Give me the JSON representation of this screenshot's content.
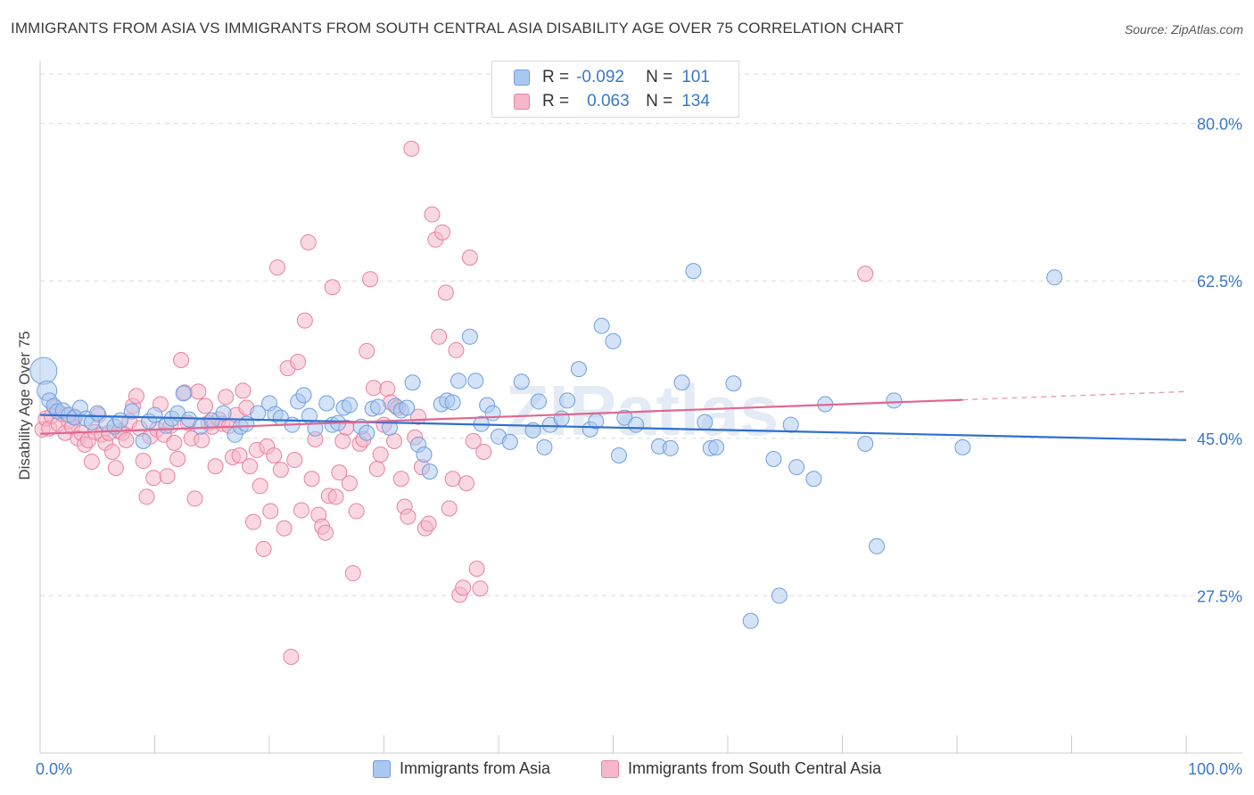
{
  "title": "IMMIGRANTS FROM ASIA VS IMMIGRANTS FROM SOUTH CENTRAL ASIA DISABILITY AGE OVER 75 CORRELATION CHART",
  "source": "Source: ZipAtlas.com",
  "watermark": "ZIPatlas",
  "colors": {
    "blue_fill": "#a9c8f0",
    "blue_stroke": "#6f9fe0",
    "blue_line": "#2e6fd0",
    "pink_fill": "#f5b8cb",
    "pink_stroke": "#e8829f",
    "pink_line": "#e0678f",
    "axis_text": "#3a78c9",
    "grid": "#dcdcdc"
  },
  "legend": {
    "rows": [
      {
        "r_label": "R =",
        "r_value": "-0.092",
        "n_label": "N =",
        "n_value": "101"
      },
      {
        "r_label": "R =",
        "r_value": "0.063",
        "n_label": "N =",
        "n_value": "134"
      }
    ]
  },
  "bottom_legend": [
    {
      "label": "Immigrants from Asia"
    },
    {
      "label": "Immigrants from South Central Asia"
    }
  ],
  "chart_data": {
    "type": "scatter",
    "title": "IMMIGRANTS FROM ASIA VS IMMIGRANTS FROM SOUTH CENTRAL ASIA DISABILITY AGE OVER 75 CORRELATION CHART",
    "xlabel": "",
    "ylabel": "Disability Age Over 75",
    "xlim": [
      0,
      100
    ],
    "ylim": [
      10,
      87
    ],
    "x_tick_labels": {
      "left": "0.0%",
      "right": "100.0%"
    },
    "y_ticks": [
      {
        "value": 80.0,
        "label": "80.0%"
      },
      {
        "value": 62.5,
        "label": "62.5%"
      },
      {
        "value": 45.0,
        "label": "45.0%"
      },
      {
        "value": 27.5,
        "label": "27.5%"
      }
    ],
    "series": [
      {
        "name": "Immigrants from Asia",
        "trend": {
          "x0": 0,
          "y0": 47.6,
          "x1": 100,
          "y1": 44.8,
          "solid_to": 100
        },
        "points": [
          [
            0.3,
            52.5
          ],
          [
            0.6,
            50.3
          ],
          [
            0.8,
            49.2
          ],
          [
            1.2,
            48.6
          ],
          [
            1.5,
            48.0
          ],
          [
            2.0,
            48.1
          ],
          [
            2.5,
            47.6
          ],
          [
            3.0,
            47.3
          ],
          [
            3.5,
            48.4
          ],
          [
            4.0,
            47.2
          ],
          [
            4.5,
            46.8
          ],
          [
            5.0,
            47.8
          ],
          [
            5.8,
            46.6
          ],
          [
            6.5,
            46.3
          ],
          [
            7.0,
            47.0
          ],
          [
            8.0,
            48.0
          ],
          [
            9.0,
            44.7
          ],
          [
            9.5,
            46.9
          ],
          [
            10.0,
            47.6
          ],
          [
            11.0,
            46.4
          ],
          [
            11.5,
            47.2
          ],
          [
            12.0,
            47.8
          ],
          [
            12.5,
            50.0
          ],
          [
            13.0,
            47.1
          ],
          [
            14.0,
            46.3
          ],
          [
            15.0,
            47.0
          ],
          [
            16.0,
            47.8
          ],
          [
            17.0,
            45.4
          ],
          [
            17.5,
            46.3
          ],
          [
            18.0,
            46.6
          ],
          [
            19.0,
            47.8
          ],
          [
            20.0,
            48.9
          ],
          [
            20.5,
            47.7
          ],
          [
            21.0,
            47.3
          ],
          [
            22.0,
            46.5
          ],
          [
            22.5,
            49.1
          ],
          [
            23.0,
            49.8
          ],
          [
            23.5,
            47.5
          ],
          [
            24.0,
            46.1
          ],
          [
            25.0,
            48.9
          ],
          [
            25.5,
            46.5
          ],
          [
            26.0,
            46.7
          ],
          [
            26.5,
            48.4
          ],
          [
            27.0,
            48.7
          ],
          [
            28.0,
            46.3
          ],
          [
            28.5,
            45.6
          ],
          [
            29.0,
            48.3
          ],
          [
            29.5,
            48.5
          ],
          [
            30.5,
            46.2
          ],
          [
            31.0,
            48.6
          ],
          [
            31.5,
            48.1
          ],
          [
            32.0,
            48.4
          ],
          [
            32.5,
            51.2
          ],
          [
            33.0,
            44.3
          ],
          [
            33.5,
            43.2
          ],
          [
            34.0,
            41.3
          ],
          [
            35.0,
            48.8
          ],
          [
            35.5,
            49.2
          ],
          [
            36.0,
            49.0
          ],
          [
            36.5,
            51.4
          ],
          [
            37.5,
            56.3
          ],
          [
            38.0,
            51.4
          ],
          [
            38.5,
            46.6
          ],
          [
            39.0,
            48.7
          ],
          [
            39.5,
            47.8
          ],
          [
            40.0,
            45.2
          ],
          [
            41.0,
            44.6
          ],
          [
            42.0,
            51.3
          ],
          [
            43.0,
            45.9
          ],
          [
            43.5,
            49.1
          ],
          [
            44.0,
            44.0
          ],
          [
            44.5,
            46.5
          ],
          [
            45.5,
            47.2
          ],
          [
            46.0,
            49.2
          ],
          [
            47.0,
            52.7
          ],
          [
            48.0,
            46.0
          ],
          [
            48.5,
            46.9
          ],
          [
            49.0,
            57.5
          ],
          [
            50.0,
            55.8
          ],
          [
            50.5,
            43.1
          ],
          [
            51.0,
            47.3
          ],
          [
            52.0,
            46.5
          ],
          [
            54.0,
            44.1
          ],
          [
            55.0,
            43.9
          ],
          [
            56.0,
            51.2
          ],
          [
            57.0,
            63.6
          ],
          [
            58.0,
            46.8
          ],
          [
            58.5,
            43.9
          ],
          [
            59.0,
            44.0
          ],
          [
            60.5,
            51.1
          ],
          [
            62.0,
            24.7
          ],
          [
            64.0,
            42.7
          ],
          [
            64.5,
            27.5
          ],
          [
            65.5,
            46.5
          ],
          [
            66.0,
            41.8
          ],
          [
            67.5,
            40.5
          ],
          [
            68.5,
            48.8
          ],
          [
            72.0,
            44.4
          ],
          [
            73.0,
            33.0
          ],
          [
            74.5,
            49.2
          ],
          [
            80.5,
            44.0
          ],
          [
            88.5,
            62.9
          ]
        ]
      },
      {
        "name": "Immigrants from South Central Asia",
        "trend": {
          "x0": 0,
          "y0": 45.5,
          "x1": 100,
          "y1": 50.2,
          "solid_to": 80.5
        },
        "points": [
          [
            0.2,
            46.0
          ],
          [
            0.5,
            47.2
          ],
          [
            0.8,
            46.1
          ],
          [
            1.0,
            47.5
          ],
          [
            1.3,
            48.4
          ],
          [
            1.6,
            46.6
          ],
          [
            1.9,
            47.7
          ],
          [
            2.2,
            45.6
          ],
          [
            2.5,
            46.9
          ],
          [
            2.8,
            46.3
          ],
          [
            3.0,
            47.4
          ],
          [
            3.3,
            45.0
          ],
          [
            3.6,
            45.6
          ],
          [
            3.9,
            44.3
          ],
          [
            4.2,
            44.8
          ],
          [
            4.5,
            42.4
          ],
          [
            4.8,
            45.7
          ],
          [
            5.1,
            47.6
          ],
          [
            5.4,
            45.4
          ],
          [
            5.7,
            44.5
          ],
          [
            6.0,
            45.6
          ],
          [
            6.3,
            43.5
          ],
          [
            6.6,
            41.7
          ],
          [
            6.9,
            45.8
          ],
          [
            7.2,
            45.6
          ],
          [
            7.5,
            44.8
          ],
          [
            7.8,
            46.9
          ],
          [
            8.1,
            48.6
          ],
          [
            8.4,
            49.7
          ],
          [
            8.7,
            46.1
          ],
          [
            9.0,
            42.5
          ],
          [
            9.3,
            38.5
          ],
          [
            9.6,
            45.2
          ],
          [
            9.9,
            40.6
          ],
          [
            10.2,
            46.0
          ],
          [
            10.5,
            48.8
          ],
          [
            10.8,
            45.4
          ],
          [
            11.1,
            40.8
          ],
          [
            11.4,
            46.4
          ],
          [
            11.7,
            44.5
          ],
          [
            12.0,
            42.7
          ],
          [
            12.3,
            53.7
          ],
          [
            12.6,
            50.1
          ],
          [
            12.9,
            46.7
          ],
          [
            13.2,
            45.0
          ],
          [
            13.5,
            38.3
          ],
          [
            13.8,
            50.2
          ],
          [
            14.1,
            44.8
          ],
          [
            14.4,
            48.6
          ],
          [
            14.7,
            46.7
          ],
          [
            15.0,
            46.3
          ],
          [
            15.3,
            41.9
          ],
          [
            15.6,
            47.1
          ],
          [
            15.9,
            46.6
          ],
          [
            16.2,
            49.6
          ],
          [
            16.5,
            46.4
          ],
          [
            16.8,
            42.9
          ],
          [
            17.1,
            47.6
          ],
          [
            17.4,
            43.1
          ],
          [
            17.7,
            50.3
          ],
          [
            18.0,
            48.4
          ],
          [
            18.3,
            41.9
          ],
          [
            18.6,
            35.7
          ],
          [
            18.9,
            43.7
          ],
          [
            19.2,
            39.7
          ],
          [
            19.5,
            32.7
          ],
          [
            19.8,
            44.1
          ],
          [
            20.1,
            36.9
          ],
          [
            20.4,
            43.1
          ],
          [
            20.7,
            64.0
          ],
          [
            21.0,
            41.5
          ],
          [
            21.3,
            35.0
          ],
          [
            21.6,
            52.8
          ],
          [
            21.9,
            20.7
          ],
          [
            22.2,
            42.6
          ],
          [
            22.5,
            53.5
          ],
          [
            22.8,
            37.0
          ],
          [
            23.1,
            58.1
          ],
          [
            23.4,
            66.8
          ],
          [
            23.7,
            40.5
          ],
          [
            24.0,
            44.9
          ],
          [
            24.3,
            36.5
          ],
          [
            24.6,
            35.2
          ],
          [
            24.9,
            34.5
          ],
          [
            25.2,
            38.6
          ],
          [
            25.5,
            61.8
          ],
          [
            25.8,
            38.5
          ],
          [
            26.1,
            41.2
          ],
          [
            26.4,
            44.7
          ],
          [
            26.7,
            46.2
          ],
          [
            27.0,
            40.0
          ],
          [
            27.3,
            30.0
          ],
          [
            27.6,
            36.9
          ],
          [
            27.9,
            44.4
          ],
          [
            28.2,
            44.9
          ],
          [
            28.5,
            54.7
          ],
          [
            28.8,
            62.7
          ],
          [
            29.1,
            50.6
          ],
          [
            29.4,
            41.6
          ],
          [
            29.7,
            43.2
          ],
          [
            30.0,
            46.5
          ],
          [
            30.3,
            50.5
          ],
          [
            30.6,
            49.0
          ],
          [
            30.9,
            44.7
          ],
          [
            31.2,
            48.4
          ],
          [
            31.5,
            40.5
          ],
          [
            31.8,
            37.4
          ],
          [
            32.1,
            36.3
          ],
          [
            32.4,
            77.2
          ],
          [
            32.7,
            45.1
          ],
          [
            33.0,
            47.4
          ],
          [
            33.3,
            41.8
          ],
          [
            33.6,
            35.0
          ],
          [
            33.9,
            35.5
          ],
          [
            34.2,
            69.9
          ],
          [
            34.5,
            67.1
          ],
          [
            34.8,
            56.3
          ],
          [
            35.1,
            67.9
          ],
          [
            35.4,
            61.2
          ],
          [
            35.7,
            37.2
          ],
          [
            36.0,
            40.5
          ],
          [
            36.3,
            54.8
          ],
          [
            36.6,
            27.6
          ],
          [
            36.9,
            28.4
          ],
          [
            37.2,
            40.0
          ],
          [
            37.5,
            65.1
          ],
          [
            37.8,
            44.7
          ],
          [
            38.1,
            30.5
          ],
          [
            38.4,
            28.3
          ],
          [
            38.7,
            43.5
          ],
          [
            72.0,
            63.3
          ]
        ]
      }
    ]
  }
}
